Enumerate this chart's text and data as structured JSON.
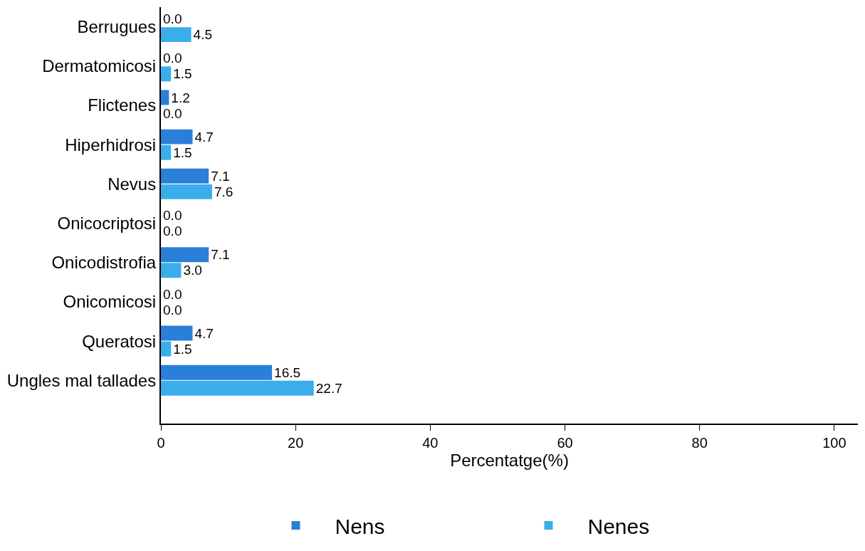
{
  "chart_data": {
    "type": "bar",
    "orientation": "horizontal",
    "xlabel": "Percentatge(%)",
    "categories": [
      "Berrugues",
      "Dermatomicosi",
      "Flictenes",
      "Hiperhidrosi",
      "Nevus",
      "Onicocriptosi",
      "Onicodistrofia",
      "Onicomicosi",
      "Queratosi",
      "Ungles mal tallades"
    ],
    "series": [
      {
        "name": "Nens",
        "color": "#2a7fd8",
        "values": [
          0.0,
          0.0,
          1.2,
          4.7,
          7.1,
          0.0,
          7.1,
          0.0,
          4.7,
          16.5
        ],
        "value_labels": [
          "0.0",
          "0.0",
          "1.2",
          "4.7",
          "7.1",
          "0.0",
          "7.1",
          "0.0",
          "4.7",
          "16.5"
        ]
      },
      {
        "name": "Nenes",
        "color": "#3aaeea",
        "values": [
          4.5,
          1.5,
          0.0,
          1.5,
          7.6,
          0.0,
          3.0,
          0.0,
          1.5,
          22.7
        ],
        "value_labels": [
          "4.5",
          "1.5",
          "0.0",
          "1.5",
          "7.6",
          "0.0",
          "3.0",
          "0.0",
          "1.5",
          "22.7"
        ]
      }
    ],
    "xlim": [
      0,
      103.5
    ],
    "xticks": [
      0,
      20,
      40,
      60,
      80,
      100
    ],
    "legend": "bottom"
  }
}
